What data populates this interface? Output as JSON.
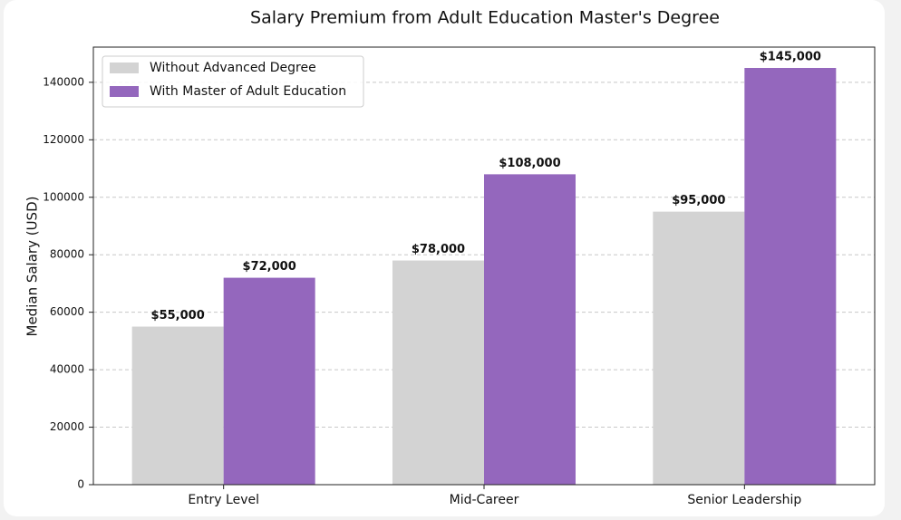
{
  "chart_data": {
    "type": "bar",
    "title": "Salary Premium from Adult Education Master's Degree",
    "y_label": "Median Salary (USD)",
    "categories": [
      "Entry Level",
      "Mid-Career",
      "Senior Leadership"
    ],
    "series": [
      {
        "name": "Without Advanced Degree",
        "color": "#d3d3d3",
        "values": [
          55000,
          78000,
          95000
        ],
        "value_labels": [
          "$55,000",
          "$78,000",
          "$95,000"
        ]
      },
      {
        "name": "With Master of Adult Education",
        "color": "#9467bd",
        "values": [
          72000,
          108000,
          145000
        ],
        "value_labels": [
          "$72,000",
          "$108,000",
          "$145,000"
        ]
      }
    ],
    "ylim": [
      0,
      152250
    ],
    "yticks": [
      0,
      20000,
      40000,
      60000,
      80000,
      100000,
      120000,
      140000
    ],
    "grid": true,
    "legend": "upper-left"
  }
}
